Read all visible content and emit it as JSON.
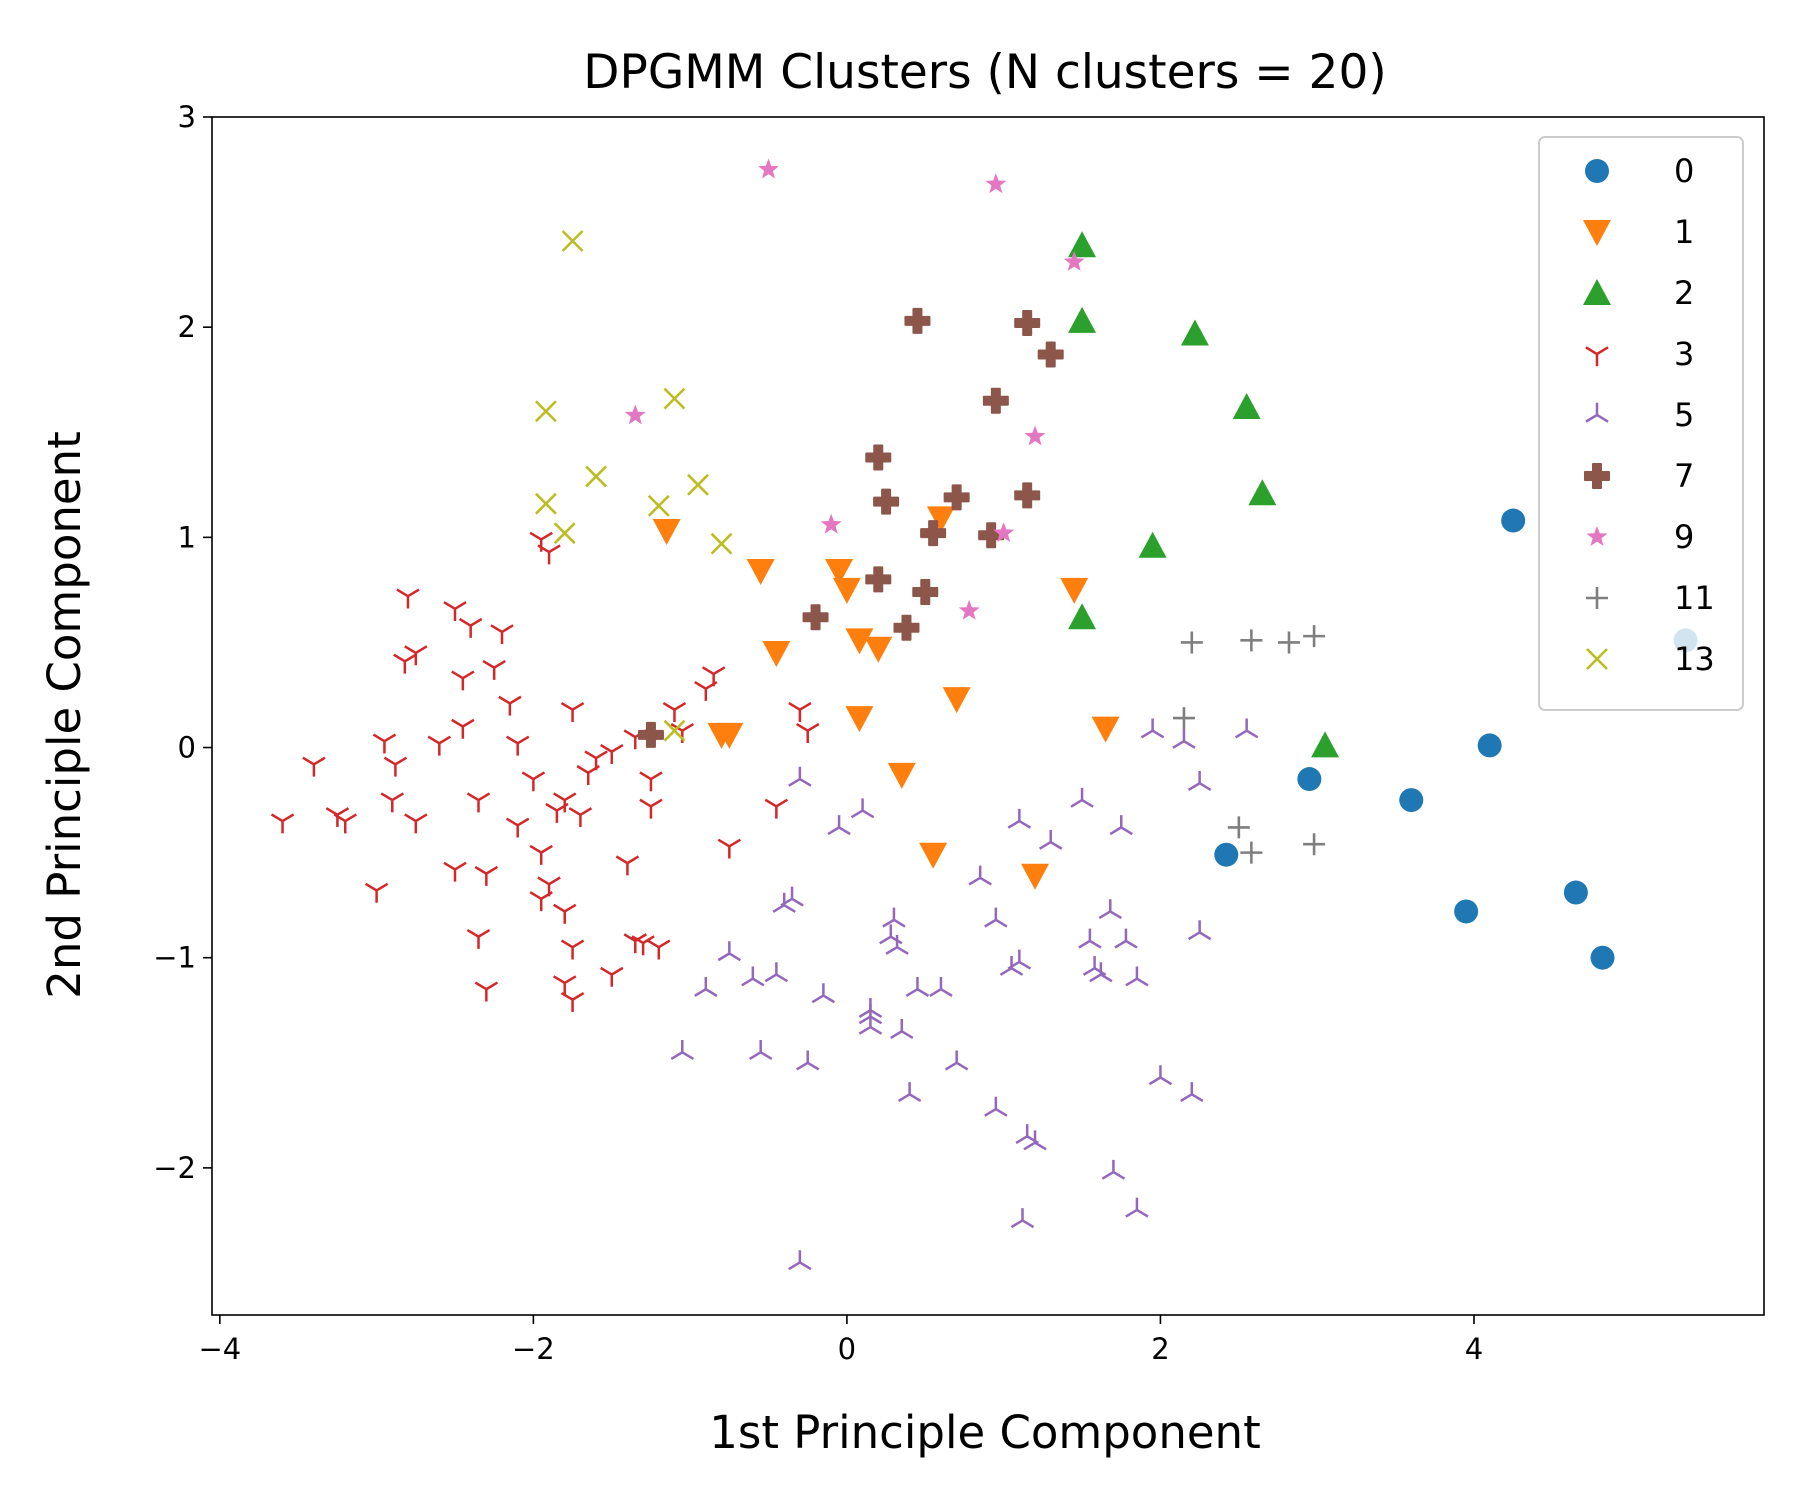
{
  "chart_data": {
    "type": "scatter",
    "title": "DPGMM Clusters (N clusters = 20)",
    "xlabel": "1st Principle Component",
    "ylabel": "2nd Principle Component",
    "xlim": [
      -4.05,
      5.85
    ],
    "ylim": [
      -2.7,
      3.0
    ],
    "xticks": [
      -4,
      -2,
      0,
      2,
      4
    ],
    "yticks": [
      -2,
      -1,
      0,
      1,
      2,
      3
    ],
    "xtick_labels": [
      "−4",
      "−2",
      "0",
      "2",
      "4"
    ],
    "ytick_labels": [
      "−2",
      "−1",
      "0",
      "1",
      "2",
      "3"
    ],
    "grid": false,
    "legend_position": "top-right",
    "series": [
      {
        "name": "0",
        "marker": "circle",
        "color": "#1f77b4",
        "points": [
          [
            4.25,
            1.08
          ],
          [
            5.35,
            0.51
          ],
          [
            4.1,
            0.01
          ],
          [
            2.95,
            -0.15
          ],
          [
            3.6,
            -0.25
          ],
          [
            2.42,
            -0.51
          ],
          [
            3.95,
            -0.78
          ],
          [
            4.65,
            -0.69
          ],
          [
            4.82,
            -1.0
          ]
        ]
      },
      {
        "name": "1",
        "marker": "triangle-down",
        "color": "#ff7f0e",
        "points": [
          [
            -1.15,
            1.03
          ],
          [
            -0.55,
            0.84
          ],
          [
            -0.45,
            0.45
          ],
          [
            -0.8,
            0.06
          ],
          [
            -0.75,
            0.06
          ],
          [
            -0.05,
            0.84
          ],
          [
            0.0,
            0.75
          ],
          [
            0.08,
            0.51
          ],
          [
            0.2,
            0.47
          ],
          [
            0.6,
            1.09
          ],
          [
            0.08,
            0.14
          ],
          [
            0.35,
            -0.13
          ],
          [
            0.7,
            0.23
          ],
          [
            1.45,
            0.75
          ],
          [
            1.65,
            0.09
          ],
          [
            0.55,
            -0.51
          ],
          [
            1.2,
            -0.61
          ]
        ]
      },
      {
        "name": "2",
        "marker": "triangle-up",
        "color": "#2ca02c",
        "points": [
          [
            1.5,
            2.39
          ],
          [
            1.5,
            2.03
          ],
          [
            2.22,
            1.97
          ],
          [
            2.55,
            1.62
          ],
          [
            2.65,
            1.21
          ],
          [
            1.95,
            0.96
          ],
          [
            1.5,
            0.62
          ],
          [
            3.05,
            0.01
          ]
        ]
      },
      {
        "name": "3",
        "marker": "tri-down",
        "color": "#d62728",
        "points": [
          [
            -3.6,
            -0.35
          ],
          [
            -3.4,
            -0.08
          ],
          [
            -3.25,
            -0.32
          ],
          [
            -3.2,
            -0.35
          ],
          [
            -3.0,
            -0.68
          ],
          [
            -2.95,
            0.03
          ],
          [
            -2.9,
            -0.25
          ],
          [
            -2.88,
            -0.08
          ],
          [
            -2.8,
            0.72
          ],
          [
            -2.82,
            0.41
          ],
          [
            -2.75,
            0.45
          ],
          [
            -2.75,
            -0.35
          ],
          [
            -2.6,
            0.02
          ],
          [
            -2.5,
            0.66
          ],
          [
            -2.45,
            0.33
          ],
          [
            -2.45,
            0.1
          ],
          [
            -2.4,
            0.58
          ],
          [
            -2.35,
            -0.25
          ],
          [
            -2.3,
            -0.6
          ],
          [
            -2.25,
            0.38
          ],
          [
            -2.2,
            0.55
          ],
          [
            -2.15,
            0.21
          ],
          [
            -2.1,
            -0.37
          ],
          [
            -2.1,
            0.02
          ],
          [
            -2.0,
            -0.15
          ],
          [
            -1.95,
            0.99
          ],
          [
            -1.9,
            0.93
          ],
          [
            -1.95,
            -0.5
          ],
          [
            -1.95,
            -0.72
          ],
          [
            -1.9,
            -0.65
          ],
          [
            -1.85,
            -0.3
          ],
          [
            -1.8,
            -0.25
          ],
          [
            -1.75,
            0.18
          ],
          [
            -1.7,
            -0.32
          ],
          [
            -1.65,
            -0.12
          ],
          [
            -1.6,
            -0.05
          ],
          [
            -1.5,
            -0.02
          ],
          [
            -1.4,
            -0.55
          ],
          [
            -1.35,
            0.05
          ],
          [
            -1.25,
            -0.15
          ],
          [
            -1.25,
            -0.28
          ],
          [
            -1.2,
            -0.95
          ],
          [
            -1.3,
            -0.93
          ],
          [
            -1.1,
            0.18
          ],
          [
            -1.05,
            0.08
          ],
          [
            -0.9,
            0.28
          ],
          [
            -0.85,
            0.35
          ],
          [
            -0.75,
            -0.47
          ],
          [
            -0.45,
            -0.28
          ],
          [
            -0.3,
            0.18
          ],
          [
            -0.25,
            0.08
          ],
          [
            -2.5,
            -0.58
          ],
          [
            -2.35,
            -0.9
          ],
          [
            -2.3,
            -1.15
          ],
          [
            -1.8,
            -0.78
          ],
          [
            -1.75,
            -0.95
          ],
          [
            -1.8,
            -1.12
          ],
          [
            -1.75,
            -1.2
          ],
          [
            -1.5,
            -1.08
          ],
          [
            -1.35,
            -0.92
          ]
        ]
      },
      {
        "name": "5",
        "marker": "tri-up",
        "color": "#9467bd",
        "points": [
          [
            -0.3,
            -0.15
          ],
          [
            -0.4,
            -0.75
          ],
          [
            -0.35,
            -0.72
          ],
          [
            -0.05,
            -0.38
          ],
          [
            0.1,
            -0.3
          ],
          [
            -0.75,
            -0.98
          ],
          [
            -0.9,
            -1.15
          ],
          [
            -0.6,
            -1.1
          ],
          [
            -0.45,
            -1.08
          ],
          [
            -1.05,
            -1.45
          ],
          [
            -0.55,
            -1.45
          ],
          [
            -0.25,
            -1.5
          ],
          [
            -0.15,
            -1.18
          ],
          [
            0.15,
            -1.28
          ],
          [
            0.15,
            -1.33
          ],
          [
            0.28,
            -0.9
          ],
          [
            0.3,
            -0.82
          ],
          [
            0.32,
            -0.95
          ],
          [
            0.35,
            -1.35
          ],
          [
            0.4,
            -1.65
          ],
          [
            0.45,
            -1.15
          ],
          [
            0.6,
            -1.15
          ],
          [
            0.7,
            -1.5
          ],
          [
            0.85,
            -0.62
          ],
          [
            0.95,
            -0.82
          ],
          [
            0.95,
            -1.72
          ],
          [
            1.05,
            -1.05
          ],
          [
            1.1,
            -0.35
          ],
          [
            1.1,
            -1.02
          ],
          [
            1.15,
            -1.85
          ],
          [
            1.2,
            -1.88
          ],
          [
            1.12,
            -2.25
          ],
          [
            1.3,
            -0.45
          ],
          [
            1.5,
            -0.25
          ],
          [
            1.55,
            -0.92
          ],
          [
            1.58,
            -1.05
          ],
          [
            1.62,
            -1.08
          ],
          [
            1.68,
            -0.78
          ],
          [
            1.7,
            -2.02
          ],
          [
            1.75,
            -0.38
          ],
          [
            1.78,
            -0.92
          ],
          [
            1.85,
            -1.1
          ],
          [
            1.85,
            -2.2
          ],
          [
            1.95,
            0.08
          ],
          [
            2.0,
            -1.57
          ],
          [
            2.15,
            0.03
          ],
          [
            2.2,
            -1.65
          ],
          [
            2.25,
            -0.88
          ],
          [
            2.25,
            -0.17
          ],
          [
            2.55,
            0.08
          ],
          [
            -0.3,
            -2.45
          ],
          [
            0.15,
            -1.25
          ]
        ]
      },
      {
        "name": "7",
        "marker": "plus-filled",
        "color": "#8c564b",
        "points": [
          [
            0.45,
            2.03
          ],
          [
            1.15,
            2.02
          ],
          [
            1.3,
            1.87
          ],
          [
            0.95,
            1.65
          ],
          [
            0.2,
            1.38
          ],
          [
            0.25,
            1.17
          ],
          [
            0.7,
            1.19
          ],
          [
            1.15,
            1.2
          ],
          [
            0.55,
            1.02
          ],
          [
            0.92,
            1.01
          ],
          [
            0.2,
            0.8
          ],
          [
            0.5,
            0.74
          ],
          [
            0.38,
            0.57
          ],
          [
            -0.2,
            0.62
          ],
          [
            -1.25,
            0.06
          ]
        ]
      },
      {
        "name": "9",
        "marker": "star",
        "color": "#e377c2",
        "points": [
          [
            -0.5,
            2.75
          ],
          [
            0.95,
            2.68
          ],
          [
            1.45,
            2.31
          ],
          [
            -1.35,
            1.58
          ],
          [
            1.2,
            1.48
          ],
          [
            -0.1,
            1.06
          ],
          [
            1.0,
            1.02
          ],
          [
            0.78,
            0.65
          ]
        ]
      },
      {
        "name": "11",
        "marker": "plus",
        "color": "#7f7f7f",
        "points": [
          [
            2.2,
            0.5
          ],
          [
            2.58,
            0.51
          ],
          [
            2.82,
            0.5
          ],
          [
            2.98,
            0.53
          ],
          [
            2.15,
            0.14
          ],
          [
            2.5,
            -0.38
          ],
          [
            2.58,
            -0.5
          ],
          [
            2.98,
            -0.46
          ]
        ]
      },
      {
        "name": "13",
        "marker": "x",
        "color": "#bcbd22",
        "points": [
          [
            -1.75,
            2.41
          ],
          [
            -1.1,
            1.66
          ],
          [
            -1.92,
            1.6
          ],
          [
            -1.6,
            1.29
          ],
          [
            -0.95,
            1.25
          ],
          [
            -1.92,
            1.16
          ],
          [
            -1.2,
            1.15
          ],
          [
            -1.8,
            1.02
          ],
          [
            -0.8,
            0.97
          ],
          [
            -1.1,
            0.08
          ]
        ]
      }
    ]
  }
}
